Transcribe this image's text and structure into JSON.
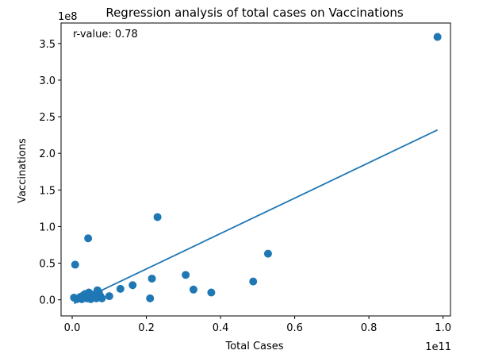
{
  "chart_data": {
    "type": "scatter",
    "title": "Regression analysis of total cases on Vaccinations",
    "xlabel": "Total Cases",
    "ylabel": "Vaccinations",
    "x_multiplier": "1e11",
    "y_multiplier": "1e8",
    "annotation": "r-value: 0.78",
    "xlim": [
      -0.03,
      1.02
    ],
    "ylim": [
      -0.22,
      3.78
    ],
    "x_ticks": [
      0.0,
      0.2,
      0.4,
      0.6,
      0.8,
      1.0
    ],
    "x_tick_labels": [
      "0.0",
      "0.2",
      "0.4",
      "0.6",
      "0.8",
      "1.0"
    ],
    "y_ticks": [
      0.0,
      0.5,
      1.0,
      1.5,
      2.0,
      2.5,
      3.0,
      3.5
    ],
    "y_tick_labels": [
      "0.0",
      "0.5",
      "1.0",
      "1.5",
      "2.0",
      "2.5",
      "3.0",
      "3.5"
    ],
    "grid": false,
    "color": "#1f77b4",
    "points": [
      {
        "x": 0.005,
        "y": 0.03
      },
      {
        "x": 0.008,
        "y": 0.48
      },
      {
        "x": 0.012,
        "y": 0.01
      },
      {
        "x": 0.018,
        "y": 0.02
      },
      {
        "x": 0.022,
        "y": 0.04
      },
      {
        "x": 0.026,
        "y": 0.01
      },
      {
        "x": 0.03,
        "y": 0.06
      },
      {
        "x": 0.035,
        "y": 0.08
      },
      {
        "x": 0.04,
        "y": 0.02
      },
      {
        "x": 0.043,
        "y": 0.84
      },
      {
        "x": 0.045,
        "y": 0.1
      },
      {
        "x": 0.048,
        "y": 0.03
      },
      {
        "x": 0.05,
        "y": 0.01
      },
      {
        "x": 0.055,
        "y": 0.07
      },
      {
        "x": 0.06,
        "y": 0.04
      },
      {
        "x": 0.065,
        "y": 0.02
      },
      {
        "x": 0.068,
        "y": 0.13
      },
      {
        "x": 0.072,
        "y": 0.1
      },
      {
        "x": 0.076,
        "y": 0.05
      },
      {
        "x": 0.08,
        "y": 0.02
      },
      {
        "x": 0.1,
        "y": 0.05
      },
      {
        "x": 0.13,
        "y": 0.15
      },
      {
        "x": 0.163,
        "y": 0.2
      },
      {
        "x": 0.21,
        "y": 0.02
      },
      {
        "x": 0.215,
        "y": 0.29
      },
      {
        "x": 0.23,
        "y": 1.13
      },
      {
        "x": 0.306,
        "y": 0.34
      },
      {
        "x": 0.327,
        "y": 0.14
      },
      {
        "x": 0.375,
        "y": 0.1
      },
      {
        "x": 0.488,
        "y": 0.25
      },
      {
        "x": 0.528,
        "y": 0.63
      },
      {
        "x": 0.985,
        "y": 3.59
      }
    ],
    "regression_line": {
      "x": [
        0.005,
        0.985
      ],
      "y": [
        -0.05,
        2.32
      ]
    }
  }
}
